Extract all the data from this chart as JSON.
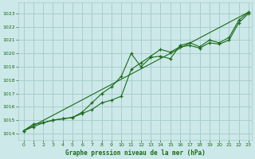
{
  "title": "",
  "xlabel": "Graphe pression niveau de la mer (hPa)",
  "ylabel": "",
  "xlim_min": -0.5,
  "xlim_max": 23.3,
  "ylim_min": 1013.5,
  "ylim_max": 1023.8,
  "yticks": [
    1014,
    1015,
    1016,
    1017,
    1018,
    1019,
    1020,
    1021,
    1022,
    1023
  ],
  "xticks": [
    0,
    1,
    2,
    3,
    4,
    5,
    6,
    7,
    8,
    9,
    10,
    11,
    12,
    13,
    14,
    15,
    16,
    17,
    18,
    19,
    20,
    21,
    22,
    23
  ],
  "bg_color": "#cce8e8",
  "grid_color": "#a8cece",
  "line_color": "#1a6b1a",
  "series1": [
    1014.2,
    1014.7,
    1014.8,
    1015.0,
    1015.1,
    1015.2,
    1015.6,
    1016.3,
    1017.0,
    1017.5,
    1018.3,
    1020.0,
    1019.0,
    1019.7,
    1019.8,
    1019.6,
    1020.6,
    1020.8,
    1020.5,
    1021.0,
    1020.8,
    1021.2,
    1022.5,
    1023.1
  ],
  "series2": [
    1014.2,
    1014.5,
    1014.8,
    1015.0,
    1015.1,
    1015.2,
    1015.5,
    1015.8,
    1016.3,
    1016.5,
    1016.8,
    1018.8,
    1019.3,
    1019.8,
    1020.3,
    1020.1,
    1020.5,
    1020.6,
    1020.4,
    1020.8,
    1020.7,
    1021.0,
    1022.3,
    1023.0
  ],
  "trend_x": [
    0,
    23
  ],
  "trend_y": [
    1014.2,
    1023.1
  ]
}
